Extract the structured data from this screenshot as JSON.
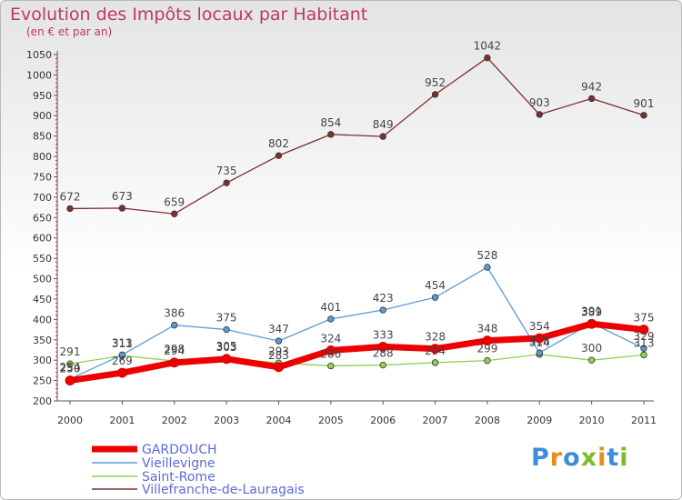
{
  "title": "Evolution des Impôts locaux par Habitant",
  "subtitle": "(en € et par an)",
  "logo_text": "Proxiti",
  "chart_data": {
    "type": "line",
    "x": [
      "2000",
      "2001",
      "2002",
      "2003",
      "2004",
      "2005",
      "2006",
      "2007",
      "2008",
      "2009",
      "2010",
      "2011"
    ],
    "ylim": [
      200,
      1050
    ],
    "yticks": [
      200,
      250,
      300,
      350,
      400,
      450,
      500,
      550,
      600,
      650,
      700,
      750,
      800,
      850,
      900,
      950,
      1000,
      1050
    ],
    "grid": false,
    "legend_position": "bottom-left",
    "series": [
      {
        "name": "GARDOUCH",
        "color": "#ee0000",
        "values": [
          250,
          269,
          294,
          303,
          283,
          324,
          333,
          328,
          348,
          354,
          389,
          375
        ]
      },
      {
        "name": "Vieillevigne",
        "color": "#5b9bd5",
        "values": [
          254,
          313,
          386,
          375,
          347,
          401,
          423,
          454,
          528,
          318,
          391,
          329
        ]
      },
      {
        "name": "Saint-Rome",
        "color": "#92d050",
        "values": [
          291,
          311,
          298,
          305,
          293,
          286,
          288,
          294,
          299,
          314,
          300,
          313
        ]
      },
      {
        "name": "Villefranche-de-Lauragais",
        "color": "#7f2f2f",
        "values": [
          672,
          673,
          659,
          735,
          802,
          854,
          849,
          952,
          1042,
          903,
          942,
          901
        ]
      }
    ]
  }
}
